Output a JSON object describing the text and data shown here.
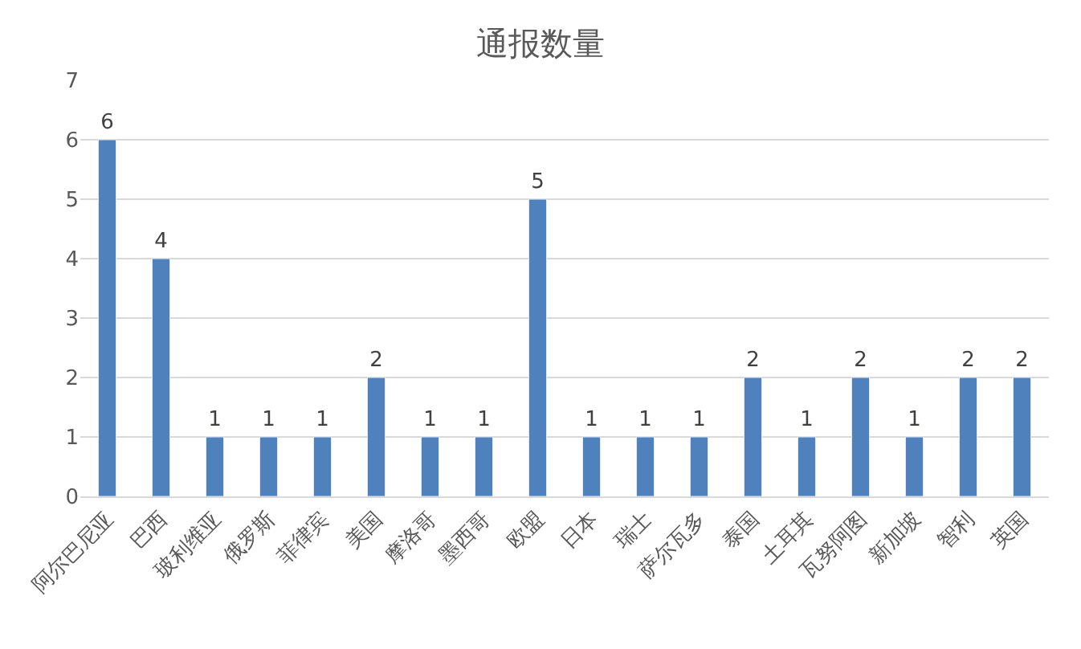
{
  "chart_data": {
    "type": "bar",
    "title": "通报数量",
    "categories": [
      "阿尔巴尼亚",
      "巴西",
      "玻利维亚",
      "俄罗斯",
      "菲律宾",
      "美国",
      "摩洛哥",
      "墨西哥",
      "欧盟",
      "日本",
      "瑞士",
      "萨尔瓦多",
      "泰国",
      "土耳其",
      "瓦努阿图",
      "新加坡",
      "智利",
      "英国"
    ],
    "values": [
      6,
      4,
      1,
      1,
      1,
      2,
      1,
      1,
      5,
      1,
      1,
      1,
      2,
      1,
      2,
      1,
      2,
      2
    ],
    "color": "#4f81bd",
    "ylim": [
      0,
      7
    ],
    "yticks": [
      0,
      1,
      2,
      3,
      4,
      5,
      6,
      7
    ],
    "grid": "y",
    "data_labels": true,
    "legend": false
  }
}
